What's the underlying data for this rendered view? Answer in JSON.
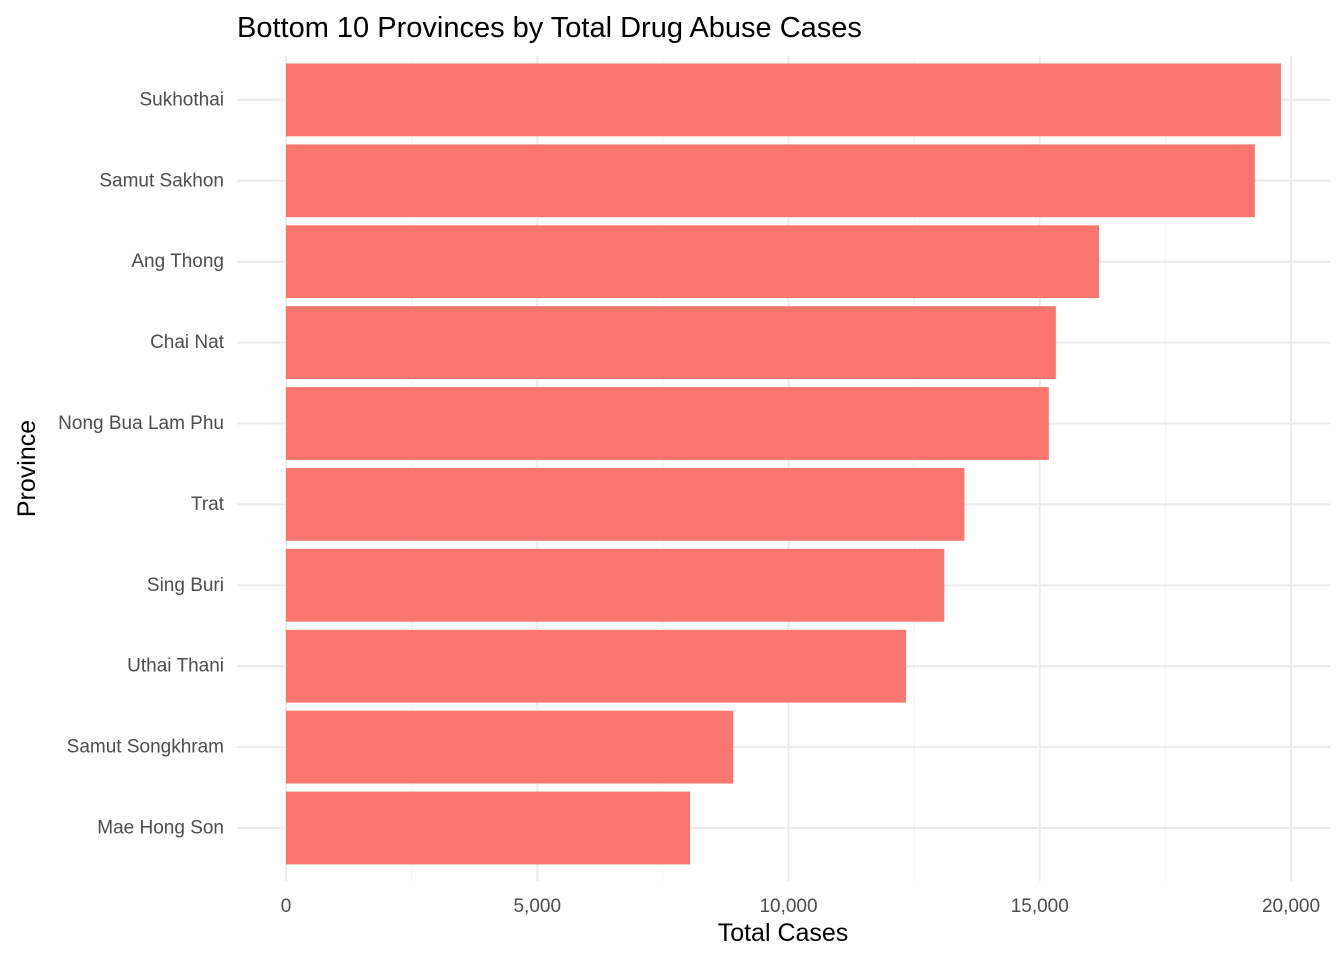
{
  "chart_data": {
    "type": "bar",
    "orientation": "horizontal",
    "title": "Bottom 10 Provinces by Total Drug Abuse Cases",
    "xlabel": "Total Cases",
    "ylabel": "Province",
    "categories": [
      "Sukhothai",
      "Samut Sakhon",
      "Ang Thong",
      "Chai Nat",
      "Nong Bua Lam Phu",
      "Trat",
      "Sing Buri",
      "Uthai Thani",
      "Samut Songkhram",
      "Mae Hong Son"
    ],
    "values": [
      19800,
      19280,
      16180,
      15320,
      15180,
      13500,
      13100,
      12340,
      8900,
      8040
    ],
    "xlim": [
      0,
      20000
    ],
    "x_ticks": [
      0,
      5000,
      10000,
      15000,
      20000
    ],
    "x_tick_labels": [
      "0",
      "5,000",
      "10,000",
      "15,000",
      "20,000"
    ],
    "bar_color": "#F8766D",
    "grid": true,
    "legend": "none"
  }
}
